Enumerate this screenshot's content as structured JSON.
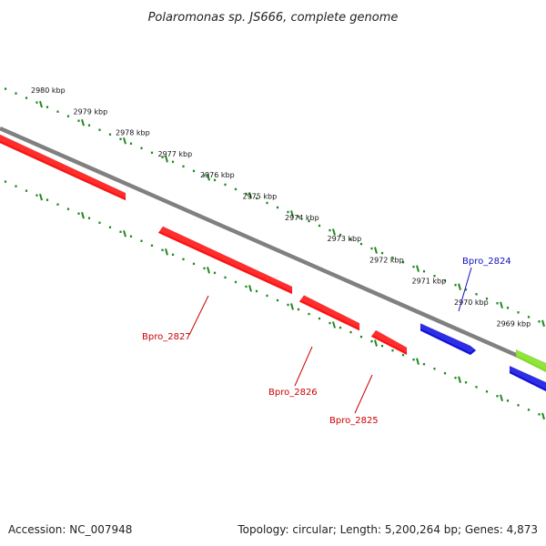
{
  "title": "Polaromonas sp. JS666, complete genome",
  "footer": {
    "accession": "Accession: NC_007948",
    "summary": "Topology: circular; Length: 5,200,264 bp; Genes: 4,873"
  },
  "colors": {
    "forward_gene": "#1010e0",
    "reverse_gene": "#ff1010",
    "feature": "#80e020",
    "tick": "#228822",
    "backbone": "#808080",
    "label_forward": "#1010c0",
    "label_reverse": "#cc0000"
  },
  "kbp_labels": [
    "2980 kbp",
    "2979 kbp",
    "2978 kbp",
    "2977 kbp",
    "2976 kbp",
    "2975 kbp",
    "2974 kbp",
    "2973 kbp",
    "2972 kbp",
    "2971 kbp",
    "2970 kbp",
    "2969 kbp"
  ],
  "genes": [
    {
      "name": "Bpro_2827",
      "strand": "reverse"
    },
    {
      "name": "Bpro_2826",
      "strand": "reverse"
    },
    {
      "name": "Bpro_2825",
      "strand": "reverse"
    },
    {
      "name": "Bpro_2824",
      "strand": "forward"
    }
  ]
}
